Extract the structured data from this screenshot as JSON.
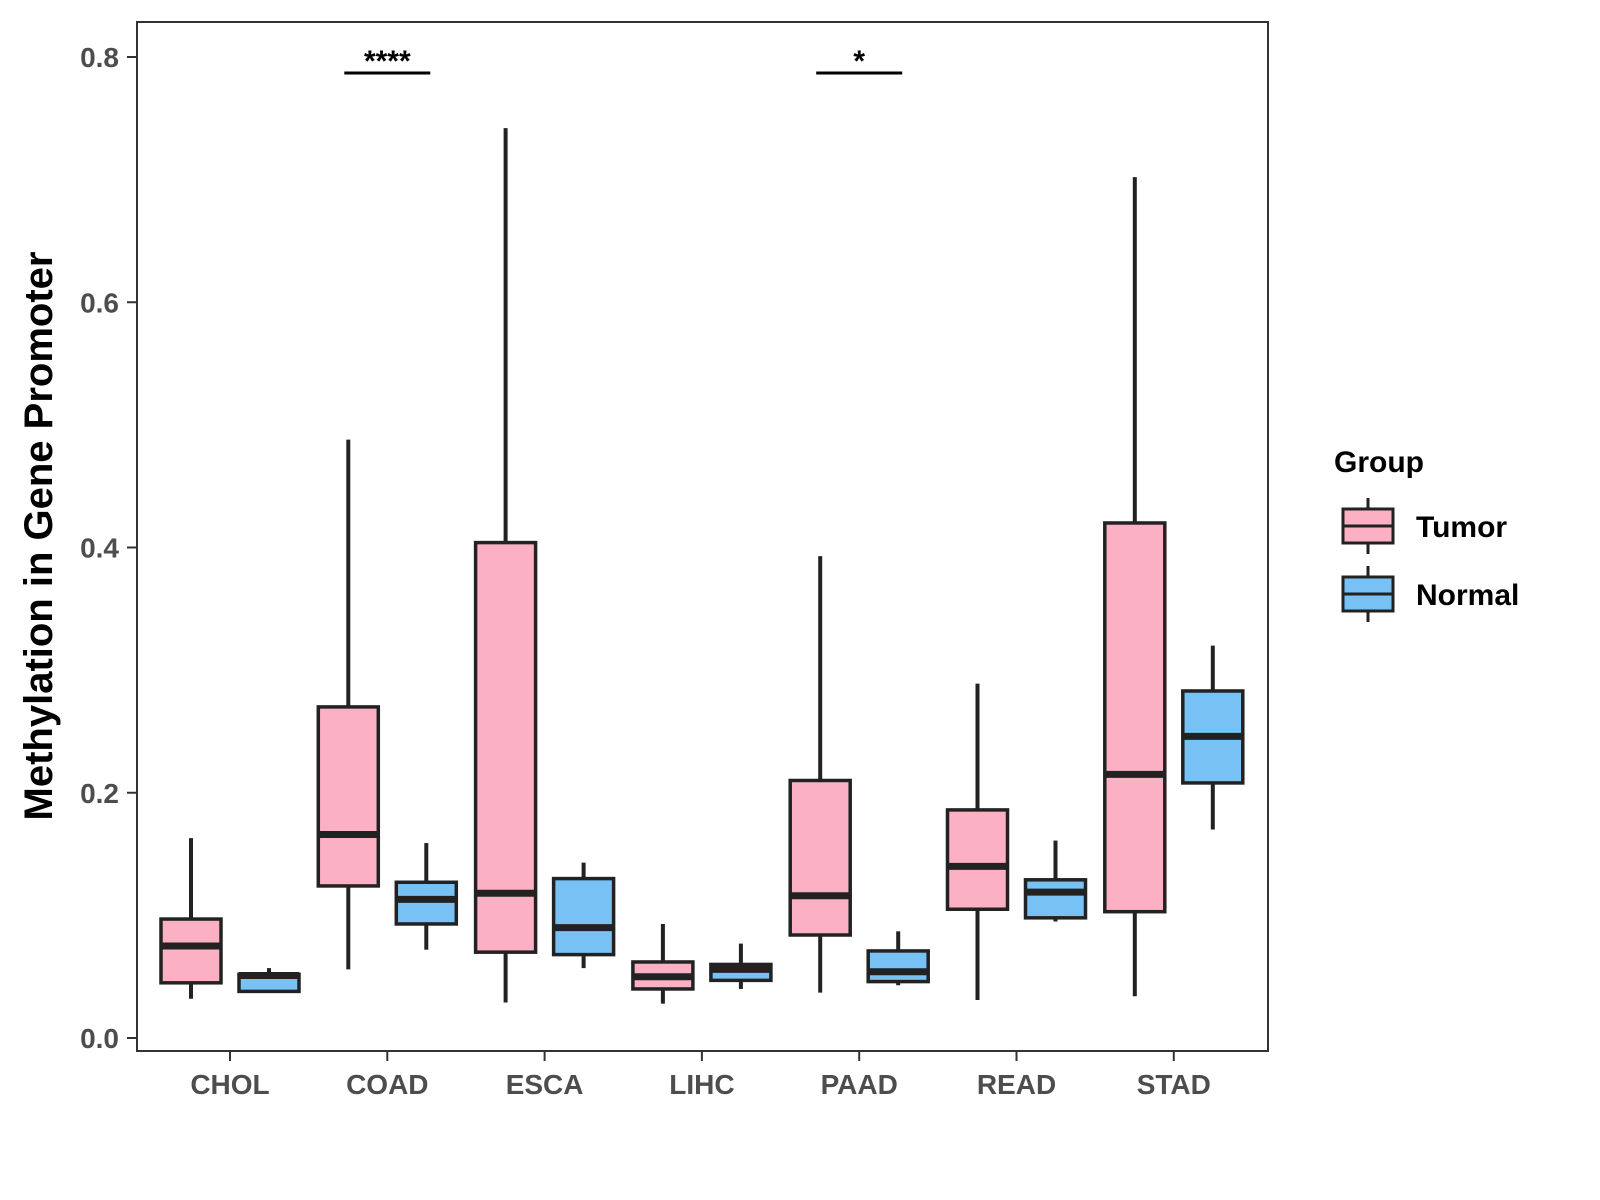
{
  "chart_data": {
    "type": "boxplot",
    "title": "",
    "xlabel": "",
    "ylabel": "Methylation in Gene Promoter",
    "ylim": [
      -0.01,
      0.84
    ],
    "yticks": [
      0.0,
      0.2,
      0.4,
      0.6,
      0.8
    ],
    "ytick_labels": [
      "0.0",
      "0.2",
      "0.4",
      "0.6",
      "0.8"
    ],
    "categories": [
      "CHOL",
      "COAD",
      "ESCA",
      "LIHC",
      "PAAD",
      "READ",
      "STAD"
    ],
    "legend": {
      "title": "Group",
      "position": "right",
      "entries": [
        "Tumor",
        "Normal"
      ]
    },
    "series": [
      {
        "name": "Tumor",
        "color": "#FBB1C3",
        "boxes": [
          {
            "min": 0.032,
            "q1": 0.045,
            "median": 0.075,
            "q3": 0.097,
            "max": 0.163
          },
          {
            "min": 0.056,
            "q1": 0.124,
            "median": 0.166,
            "q3": 0.27,
            "max": 0.488
          },
          {
            "min": 0.029,
            "q1": 0.07,
            "median": 0.118,
            "q3": 0.404,
            "max": 0.742
          },
          {
            "min": 0.028,
            "q1": 0.04,
            "median": 0.05,
            "q3": 0.062,
            "max": 0.093
          },
          {
            "min": 0.037,
            "q1": 0.084,
            "median": 0.116,
            "q3": 0.21,
            "max": 0.393
          },
          {
            "min": 0.031,
            "q1": 0.105,
            "median": 0.14,
            "q3": 0.186,
            "max": 0.289
          },
          {
            "min": 0.034,
            "q1": 0.103,
            "median": 0.215,
            "q3": 0.42,
            "max": 0.702
          }
        ]
      },
      {
        "name": "Normal",
        "color": "#77C1F5",
        "boxes": [
          {
            "min": 0.038,
            "q1": 0.038,
            "median": 0.051,
            "q3": 0.052,
            "max": 0.057
          },
          {
            "min": 0.072,
            "q1": 0.093,
            "median": 0.113,
            "q3": 0.127,
            "max": 0.159
          },
          {
            "min": 0.057,
            "q1": 0.068,
            "median": 0.09,
            "q3": 0.13,
            "max": 0.143
          },
          {
            "min": 0.04,
            "q1": 0.047,
            "median": 0.056,
            "q3": 0.06,
            "max": 0.077
          },
          {
            "min": 0.043,
            "q1": 0.046,
            "median": 0.054,
            "q3": 0.071,
            "max": 0.087
          },
          {
            "min": 0.095,
            "q1": 0.098,
            "median": 0.119,
            "q3": 0.129,
            "max": 0.161
          },
          {
            "min": 0.17,
            "q1": 0.208,
            "median": 0.246,
            "q3": 0.283,
            "max": 0.32
          }
        ]
      }
    ],
    "significance": [
      {
        "category": "COAD",
        "label": "****",
        "y": 0.787
      },
      {
        "category": "PAAD",
        "label": "*",
        "y": 0.787
      }
    ]
  }
}
